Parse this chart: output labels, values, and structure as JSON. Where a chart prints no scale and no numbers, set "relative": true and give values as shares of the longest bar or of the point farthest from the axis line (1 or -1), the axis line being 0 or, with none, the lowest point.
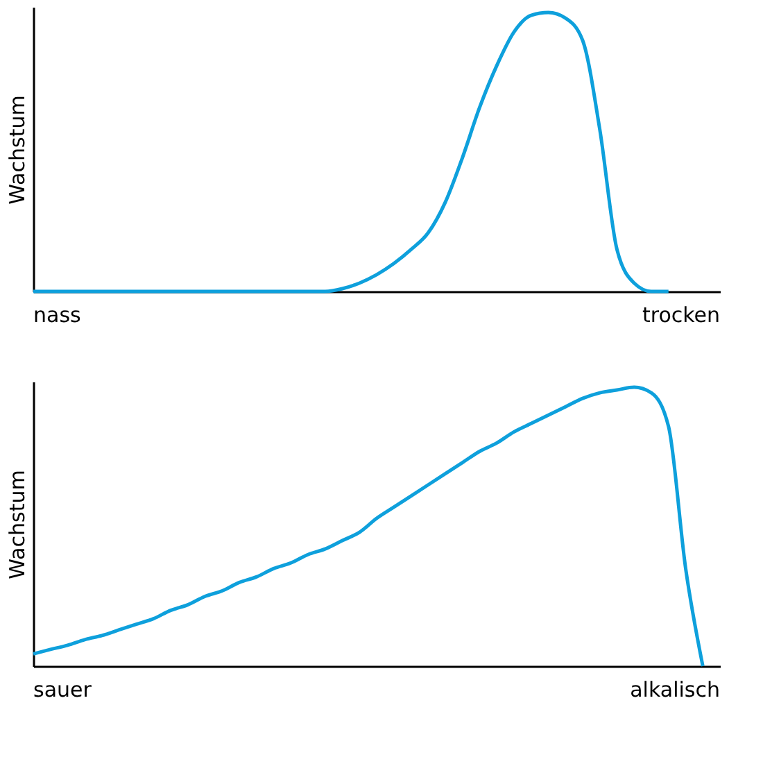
{
  "chart_data": [
    {
      "type": "line",
      "relative": true,
      "ylabel": "Wachstum",
      "annotations": [
        "nass",
        "trocken"
      ],
      "grid": false,
      "marker": "none",
      "line_style": "solid",
      "categories": [
        null,
        null,
        null,
        null,
        null,
        null,
        null,
        null,
        null,
        null,
        null,
        null,
        null,
        null,
        null,
        null,
        null,
        null,
        null,
        null,
        null,
        null,
        null,
        null,
        null,
        null,
        null,
        null,
        null,
        null,
        null,
        null,
        null,
        null,
        null,
        null,
        null,
        null,
        null,
        null,
        null
      ],
      "series": [
        {
          "color": "#0ea0dc",
          "values": [
            0,
            0,
            0,
            0,
            0,
            0,
            0,
            0,
            0,
            0,
            0,
            0,
            0,
            0,
            0,
            0,
            0,
            0,
            0.01,
            0.03,
            0.06,
            0.1,
            0.15,
            0.21,
            0.32,
            0.48,
            0.66,
            0.81,
            0.93,
            0.99,
            1.0,
            0.98,
            0.9,
            0.58,
            0.15,
            0.03,
            0,
            0,
            null,
            null,
            null
          ]
        }
      ]
    },
    {
      "type": "line",
      "relative": true,
      "ylabel": "Wachstum",
      "annotations": [
        "sauer",
        "alkalisch"
      ],
      "grid": false,
      "marker": "none",
      "line_style": "solid",
      "categories": [
        null,
        null,
        null,
        null,
        null,
        null,
        null,
        null,
        null,
        null,
        null,
        null,
        null,
        null,
        null,
        null,
        null,
        null,
        null,
        null,
        null,
        null,
        null,
        null,
        null,
        null,
        null,
        null,
        null,
        null,
        null,
        null,
        null,
        null,
        null,
        null,
        null,
        null,
        null,
        null,
        null
      ],
      "series": [
        {
          "color": "#0ea0dc",
          "values": [
            0.044,
            0.06,
            0.075,
            0.095,
            0.11,
            0.13,
            0.15,
            0.17,
            0.2,
            0.22,
            0.25,
            0.27,
            0.3,
            0.32,
            0.35,
            0.37,
            0.4,
            0.42,
            0.45,
            0.48,
            0.53,
            0.57,
            0.61,
            0.65,
            0.69,
            0.73,
            0.77,
            0.8,
            0.84,
            0.87,
            0.9,
            0.93,
            0.96,
            0.98,
            0.99,
            1.0,
            0.98,
            0.86,
            0.35,
            0,
            null
          ]
        }
      ]
    }
  ]
}
